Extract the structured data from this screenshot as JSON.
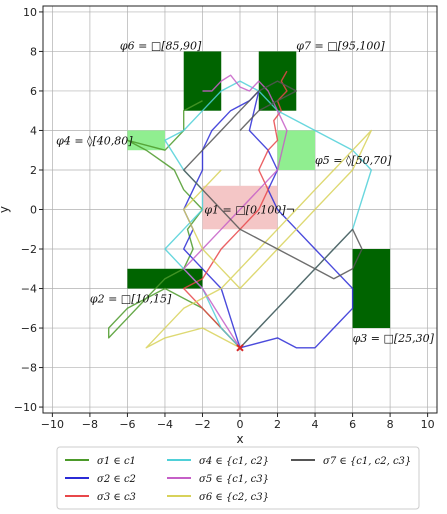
{
  "chart_data": {
    "type": "line",
    "title": "",
    "xlabel": "x",
    "ylabel": "y",
    "xlim": [
      -10.5,
      10.5
    ],
    "ylim": [
      -10.3,
      10.3
    ],
    "xticks": [
      -10,
      -8,
      -6,
      -4,
      -2,
      0,
      2,
      4,
      6,
      8,
      10
    ],
    "yticks": [
      -10,
      -8,
      -6,
      -4,
      -2,
      0,
      2,
      4,
      6,
      8,
      10
    ],
    "xtick_labels": [
      "−10",
      "−8",
      "−6",
      "−4",
      "−2",
      "0",
      "2",
      "4",
      "6",
      "8",
      "10"
    ],
    "ytick_labels": [
      "−10",
      "−8",
      "−6",
      "−4",
      "−2",
      "0",
      "2",
      "4",
      "6",
      "8",
      "10"
    ],
    "grid": true,
    "start_point": {
      "x": 0,
      "y": -7,
      "color": "#d62728"
    },
    "regions": [
      {
        "name": "φ1 = □[0,100]¬",
        "x": [
          -2,
          2
        ],
        "y": [
          -1,
          1.2
        ],
        "color": "#f4c6c6",
        "label_x": -1.9,
        "label_y": 0
      },
      {
        "name": "φ2 = □[10,15]",
        "x": [
          -6,
          -2
        ],
        "y": [
          -4,
          -3
        ],
        "color": "#006400",
        "label_x": -8,
        "label_y": -4.5
      },
      {
        "name": "φ3 = □[25,30]",
        "x": [
          6,
          8
        ],
        "y": [
          -6,
          -2
        ],
        "color": "#006400",
        "label_x": 6,
        "label_y": -6.5
      },
      {
        "name": "φ4 = ◊[40,80]",
        "x": [
          -6,
          -4
        ],
        "y": [
          3,
          4
        ],
        "color": "#90ee90",
        "label_x": -9.8,
        "label_y": 3.5
      },
      {
        "name": "φ5 = ◊[50,70]",
        "x": [
          2,
          4
        ],
        "y": [
          2,
          4
        ],
        "color": "#90ee90",
        "label_x": 4,
        "label_y": 2.5
      },
      {
        "name": "φ6 = □[85,90]",
        "x": [
          -3,
          -1
        ],
        "y": [
          5,
          8
        ],
        "color": "#006400",
        "label_x": -6.4,
        "label_y": 8.3
      },
      {
        "name": "φ7 = □[95,100]",
        "x": [
          1,
          3
        ],
        "y": [
          5,
          8
        ],
        "color": "#006400",
        "label_x": 3,
        "label_y": 8.3
      }
    ],
    "series": [
      {
        "name": "σ1 ∈ c1",
        "color": "#4c9a2a",
        "x": [
          0,
          -1,
          -2,
          -3,
          -4,
          -5,
          -6,
          -7,
          -7,
          -6,
          -5,
          -4,
          -3,
          -2.5,
          -2.8,
          -2,
          -3,
          -3.5,
          -5,
          -6,
          -4,
          -3,
          -3,
          -2
        ],
        "y": [
          -7,
          -6,
          -5,
          -4.5,
          -4,
          -4.5,
          -5,
          -6,
          -6.5,
          -5.5,
          -4.5,
          -3.5,
          -3,
          -2,
          -1,
          0,
          1,
          2,
          3,
          3.5,
          3,
          4,
          5,
          5.5
        ]
      },
      {
        "name": "σ2 ∈ c2",
        "color": "#2b2bd6",
        "x": [
          0,
          -0.5,
          -1,
          -2,
          -3,
          -2.5,
          -3,
          -2.5,
          -2,
          -2,
          -1.5,
          -0.5,
          0.5,
          1,
          0.5,
          1.5,
          2,
          1.5,
          2,
          3,
          4,
          5,
          6,
          6,
          5,
          4,
          3,
          2,
          0
        ],
        "y": [
          -7,
          -5.5,
          -4,
          -3,
          -2,
          -1,
          0,
          1,
          2,
          3,
          4,
          5,
          5.5,
          6,
          4,
          3,
          2,
          1,
          0,
          -1,
          -2,
          -3,
          -4,
          -5,
          -6,
          -7,
          -7,
          -6.5,
          -7
        ]
      },
      {
        "name": "σ3 ∈ c3",
        "color": "#e8474a",
        "x": [
          0,
          -1,
          -2,
          -3,
          -2,
          -1,
          0,
          1,
          1.5,
          1,
          1.5,
          2,
          1.8,
          2.2,
          2,
          2.5,
          2.2,
          2.5
        ],
        "y": [
          -7,
          -6,
          -5,
          -4,
          -3.5,
          -2,
          -1,
          0,
          1,
          2,
          3,
          3.5,
          4.5,
          5,
          5.5,
          6,
          6.5,
          7
        ]
      },
      {
        "name": "σ4 ∈ {c1, c2}",
        "color": "#4fd0d8",
        "x": [
          0,
          -1,
          -2,
          -3,
          -4,
          -3,
          -2,
          -2,
          -3,
          -4,
          -3,
          -2,
          -1,
          0,
          1,
          2,
          4,
          6,
          7,
          6,
          5,
          4,
          3,
          2,
          1,
          0
        ],
        "y": [
          -7,
          -6,
          -4,
          -3,
          -2,
          -1,
          0,
          1,
          2,
          3.5,
          4,
          5,
          6,
          6.5,
          6,
          5,
          4,
          3,
          2,
          -1,
          -2,
          -3,
          -4,
          -5,
          -6,
          -7
        ]
      },
      {
        "name": "σ5 ∈ {c1, c3}",
        "color": "#c55fc7",
        "x": [
          0,
          -1,
          -2,
          -3,
          -2,
          -1,
          0,
          1,
          2,
          2.5,
          2,
          1.5,
          1,
          0.5,
          0,
          -0.5,
          -1,
          -1.5,
          -2
        ],
        "y": [
          -7,
          -5.5,
          -4,
          -3,
          -2,
          -1,
          0,
          1,
          2,
          4,
          5,
          6,
          6.5,
          6,
          6.2,
          6.8,
          6.5,
          6,
          6
        ]
      },
      {
        "name": "σ6 ∈ {c2, c3}",
        "color": "#d8d25a",
        "x": [
          0,
          -2,
          -4,
          -5,
          -3,
          -1,
          0,
          1,
          2,
          3,
          4,
          5,
          6,
          7,
          6,
          5,
          4,
          3,
          2,
          1,
          0,
          -1,
          -2,
          -3,
          -2,
          -1
        ],
        "y": [
          -7,
          -6,
          -6.5,
          -7,
          -5,
          -4,
          -3,
          -2,
          -1,
          0,
          1,
          2,
          3,
          4,
          2,
          1,
          0,
          -1,
          -2,
          -3,
          -4,
          -3,
          -2,
          0,
          1,
          2
        ]
      },
      {
        "name": "σ7 ∈ {c1, c2, c3}",
        "color": "#555555",
        "x": [
          0,
          1,
          2,
          3,
          4,
          5,
          6,
          6.5,
          6,
          5,
          4,
          3,
          2,
          1,
          0,
          -1,
          -2,
          -3,
          -2,
          -1,
          0,
          1,
          2,
          3,
          2,
          1,
          0
        ],
        "y": [
          -7,
          -6,
          -5,
          -4,
          -3,
          -2,
          -1,
          -2,
          -3,
          -3.5,
          -3,
          -2.5,
          -2,
          -1.5,
          -1,
          0,
          1,
          2,
          3,
          4,
          5,
          6,
          6.5,
          6,
          5.5,
          5,
          4
        ]
      }
    ],
    "legend": {
      "placement": "bottom",
      "columns": 3
    }
  }
}
